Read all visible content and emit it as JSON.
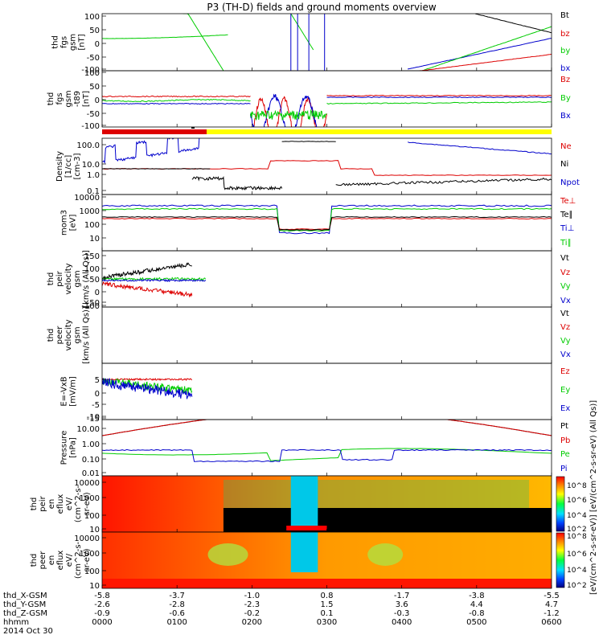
{
  "title": "P3 (TH-D) fields and ground moments overview",
  "colors": {
    "black": "#000000",
    "red": "#dd0000",
    "green": "#00cc00",
    "blue": "#0000cc",
    "yellow": "#ffff00"
  },
  "chart_data": {
    "type": "line",
    "time_labels": [
      "0000",
      "0100",
      "0200",
      "0300",
      "0400",
      "0500",
      "0600"
    ],
    "orbit": {
      "rows": [
        "thd_X-GSM",
        "thd_Y-GSM",
        "thd_Z-GSM",
        "hhmm"
      ],
      "x_gsm": [
        "-5.8",
        "-3.7",
        "-1.0",
        "0.8",
        "-1.7",
        "-3.8",
        "-5.5"
      ],
      "y_gsm": [
        "-2.6",
        "-2.8",
        "-2.3",
        "1.5",
        "3.6",
        "4.4",
        "4.7"
      ],
      "z_gsm": [
        "-0.9",
        "-0.6",
        "-0.2",
        "0.1",
        "-0.3",
        "-0.8",
        "-1.2"
      ]
    },
    "date_label": "2014 Oct 30",
    "panels": [
      {
        "ylabel": [
          "thd",
          "fgs",
          "gsm",
          "[nT]"
        ],
        "ticks": [
          "100",
          "50",
          "0",
          "-50",
          "-100"
        ],
        "legend": [
          {
            "name": "Bt",
            "color": "black"
          },
          {
            "name": "bz",
            "color": "red"
          },
          {
            "name": "by",
            "color": "green"
          },
          {
            "name": "bx",
            "color": "blue"
          }
        ]
      },
      {
        "ylabel": [
          "thd",
          "fgs",
          "gsm",
          "-t89",
          "[nT]"
        ],
        "ticks": [
          "100",
          "50",
          "0",
          "-50",
          "-100"
        ],
        "legend": [
          {
            "name": "Bz",
            "color": "red"
          },
          {
            "name": "By",
            "color": "green"
          },
          {
            "name": "Bx",
            "color": "blue"
          }
        ]
      },
      {
        "ylabel": [
          "Density",
          "[1/cc]",
          "[cm-3]"
        ],
        "ticks": [
          "100.0",
          "10.0",
          "1.0",
          "0.1"
        ],
        "legend": [
          {
            "name": "Ne",
            "color": "red"
          },
          {
            "name": "Ni",
            "color": "black"
          },
          {
            "name": "Npot",
            "color": "blue"
          }
        ]
      },
      {
        "ylabel": [
          "mom3",
          "[eV]"
        ],
        "ticks": [
          "10000",
          "1000",
          "100",
          "10"
        ],
        "legend": [
          {
            "name": "Te⊥",
            "color": "red"
          },
          {
            "name": "Te∥",
            "color": "black"
          },
          {
            "name": "Ti⊥",
            "color": "blue"
          },
          {
            "name": "Ti∥",
            "color": "green"
          }
        ]
      },
      {
        "ylabel": [
          "thd",
          "peir",
          "velocity",
          "gsm",
          "[km/s (All Qs)]"
        ],
        "ticks": [
          "150",
          "100",
          "50",
          "0",
          "-50",
          "-100"
        ],
        "legend": [
          {
            "name": "Vt",
            "color": "black"
          },
          {
            "name": "Vz",
            "color": "red"
          },
          {
            "name": "Vy",
            "color": "green"
          },
          {
            "name": "Vx",
            "color": "blue"
          }
        ]
      },
      {
        "ylabel": [
          "thd",
          "peer",
          "velocity",
          "gsm",
          "[km/s (All Qs)]"
        ],
        "ticks": [],
        "legend": [
          {
            "name": "Vt",
            "color": "black"
          },
          {
            "name": "Vz",
            "color": "red"
          },
          {
            "name": "Vy",
            "color": "green"
          },
          {
            "name": "Vx",
            "color": "blue"
          }
        ]
      },
      {
        "ylabel": [
          "E=-VxB",
          "[mV/m]"
        ],
        "ticks": [
          "5",
          "0",
          "-5",
          "-10",
          "-15"
        ],
        "legend": [
          {
            "name": "Ez",
            "color": "red"
          },
          {
            "name": "Ey",
            "color": "green"
          },
          {
            "name": "Ex",
            "color": "blue"
          }
        ]
      },
      {
        "ylabel": [
          "Pressure",
          "[nPa]"
        ],
        "ticks": [
          "10.00",
          "1.00",
          "0.10",
          "0.01"
        ],
        "legend": [
          {
            "name": "Pt",
            "color": "black"
          },
          {
            "name": "Pb",
            "color": "red"
          },
          {
            "name": "Pe",
            "color": "green"
          },
          {
            "name": "Pi",
            "color": "blue"
          }
        ]
      },
      {
        "ylabel": [
          "thd",
          "peir",
          "en",
          "eflux",
          "eV/",
          "(cm^2-s-",
          "sr-eV)"
        ],
        "ticks": [
          "10000",
          "1000",
          "100",
          "10"
        ],
        "legend": []
      },
      {
        "ylabel": [
          "thd",
          "peer",
          "en",
          "eflux",
          "eV/",
          "(cm^2-s-",
          "sr-eV)"
        ],
        "ticks": [
          "10000",
          "1000",
          "100",
          "10"
        ],
        "legend": []
      }
    ],
    "colorbar": {
      "label": "[eV/(cm^2-s-sr-eV)] [eV/(cm^2-s-sr-eV) (All Qs)]",
      "ticks_top": [
        "10^8",
        "10^6",
        "10^4",
        "10^2"
      ],
      "ticks_bottom": [
        "10^8",
        "10^6",
        "10^4",
        "10^2"
      ]
    }
  }
}
